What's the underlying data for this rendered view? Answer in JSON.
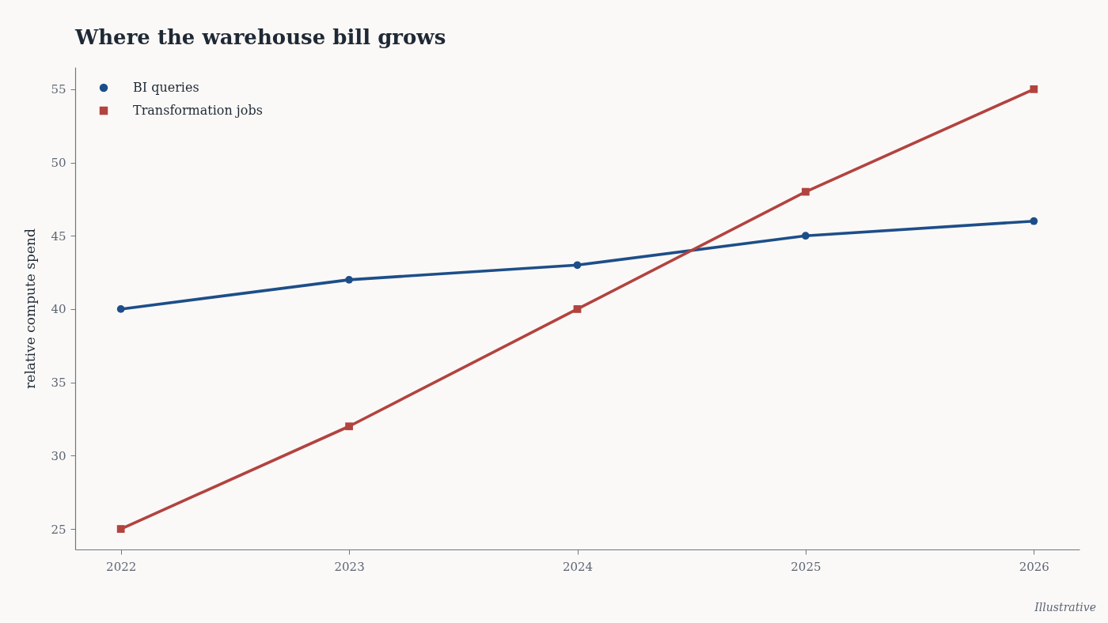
{
  "chart_data": {
    "type": "line",
    "title": "Where the warehouse bill grows",
    "ylabel": "relative compute spend",
    "annotations": [
      "Illustrative"
    ],
    "x": [
      2022,
      2023,
      2024,
      2025,
      2026
    ],
    "series": [
      {
        "name": "BI queries",
        "color": "#1d4e89",
        "marker": "circle",
        "line_style": "solid",
        "values": [
          40,
          42,
          43,
          45,
          46
        ]
      },
      {
        "name": "Transformation jobs",
        "color": "#b2433f",
        "marker": "square",
        "line_style": "solid",
        "values": [
          25,
          32,
          40,
          48,
          55
        ]
      }
    ],
    "xlim": [
      2021.8,
      2026.2
    ],
    "ylim": [
      23.6,
      56.5
    ],
    "xticks": [
      2022,
      2023,
      2024,
      2025,
      2026
    ],
    "yticks": [
      25,
      30,
      35,
      40,
      45,
      50,
      55
    ],
    "grid": false,
    "legend": "top left"
  }
}
